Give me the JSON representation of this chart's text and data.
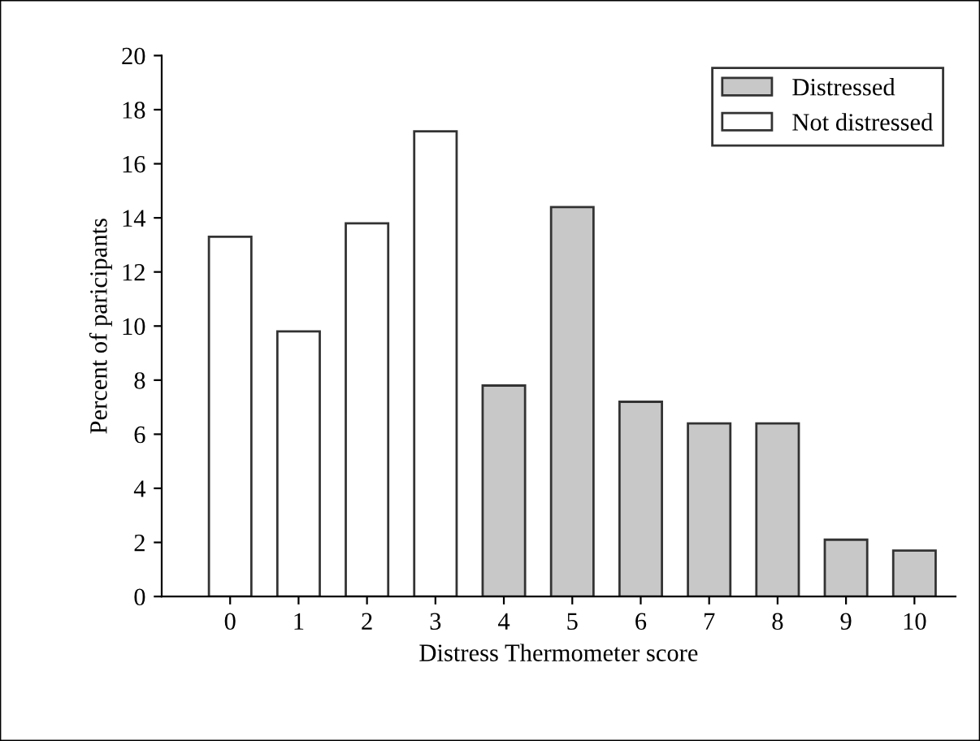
{
  "chart_data": {
    "type": "bar",
    "xlabel": "Distress Thermometer score",
    "ylabel": "Percent of paricipants",
    "categories": [
      "0",
      "1",
      "2",
      "3",
      "4",
      "5",
      "6",
      "7",
      "8",
      "9",
      "10"
    ],
    "series": [
      {
        "name": "Distressed",
        "color": "#c8c8c8",
        "values": [
          null,
          null,
          null,
          null,
          7.8,
          14.4,
          7.2,
          6.4,
          6.4,
          2.1,
          1.7
        ]
      },
      {
        "name": "Not distressed",
        "color": "#ffffff",
        "values": [
          13.3,
          9.8,
          13.8,
          17.2,
          null,
          null,
          null,
          null,
          null,
          null,
          null
        ]
      }
    ],
    "ylim": [
      0,
      20
    ],
    "yticks": [
      0,
      2,
      4,
      6,
      8,
      10,
      12,
      14,
      16,
      18,
      20
    ],
    "grid": false,
    "legend": "top right"
  }
}
